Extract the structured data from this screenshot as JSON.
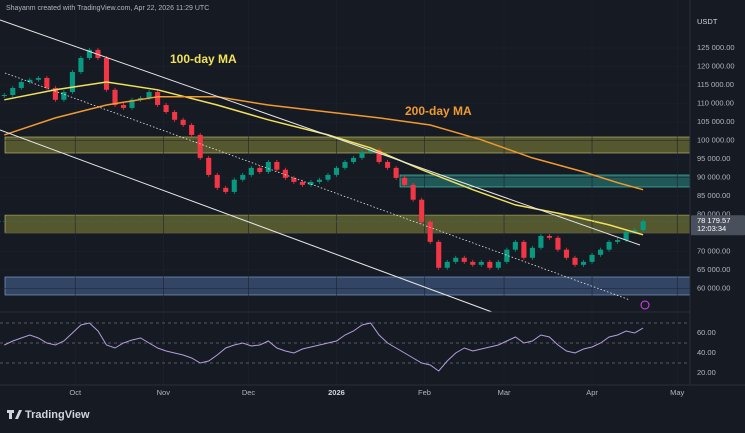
{
  "header": {
    "attribution": "Shayanm created with TradingView.com, Apr 22, 2026 11:29 UTC",
    "currency": "USDT",
    "brand": "TradingView"
  },
  "chart_data": {
    "type": "candlestick",
    "up_color": "#089981",
    "down_color": "#f23645",
    "close": [
      112300,
      114200,
      115800,
      116400,
      116900,
      114200,
      111000,
      113100,
      118500,
      122300,
      124500,
      122300,
      113700,
      109600,
      108800,
      111000,
      111500,
      113100,
      109600,
      107700,
      105600,
      104200,
      101500,
      95300,
      90700,
      87200,
      86100,
      89400,
      90700,
      92600,
      91500,
      94200,
      92100,
      89900,
      88800,
      88000,
      88800,
      89400,
      90700,
      92600,
      94200,
      95300,
      96900,
      97500,
      94200,
      92600,
      89900,
      88000,
      84000,
      78000,
      72600,
      65600,
      67200,
      68300,
      67200,
      66400,
      67200,
      65600,
      67200,
      70500,
      72600,
      68300,
      71000,
      74200,
      73700,
      70500,
      68300,
      66400,
      67200,
      69100,
      70500,
      72600,
      73100,
      75300,
      75800,
      78179.57
    ],
    "xlim": [
      -0.5,
      80.5
    ],
    "ylim": [
      54190,
      137970
    ],
    "xticks": [
      {
        "value": 8.33,
        "label": "Oct"
      },
      {
        "value": 18.67,
        "label": "Nov"
      },
      {
        "value": 28.67,
        "label": "Dec"
      },
      {
        "value": 39,
        "label": "2026"
      },
      {
        "value": 49.33,
        "label": "Feb"
      },
      {
        "value": 58.67,
        "label": "Mar"
      },
      {
        "value": 69,
        "label": "Apr"
      },
      {
        "value": 79,
        "label": "May"
      }
    ],
    "yticks": [
      {
        "value": 125000,
        "label": "125 000.00"
      },
      {
        "value": 120000,
        "label": "120 000.00"
      },
      {
        "value": 115000,
        "label": "115 000.00"
      },
      {
        "value": 110000,
        "label": "110 000.00"
      },
      {
        "value": 105000,
        "label": "105 000.00"
      },
      {
        "value": 100000,
        "label": "100 000.00"
      },
      {
        "value": 95000,
        "label": "95 000.00"
      },
      {
        "value": 90000,
        "label": "90 000.00"
      },
      {
        "value": 85000,
        "label": "85 000.00"
      },
      {
        "value": 80000,
        "label": "80 000.00"
      },
      {
        "value": 75000,
        "label": "75 000.00"
      },
      {
        "value": 70000,
        "label": "70 000.00"
      },
      {
        "value": 65000,
        "label": "65 000.00"
      },
      {
        "value": 60000,
        "label": "60 000.00"
      }
    ],
    "last_price": {
      "value": 78179.57,
      "label": "78 179.57"
    },
    "countdown": "12:03:34",
    "series": [
      {
        "name": "100-day MA",
        "color": "#f2e15b",
        "x": [
          0,
          6,
          12,
          18,
          25,
          31,
          38,
          43,
          49,
          55,
          60,
          66,
          71,
          75
        ],
        "values": [
          111000,
          113700,
          115800,
          113700,
          109600,
          105600,
          101500,
          98000,
          92100,
          86700,
          82600,
          79900,
          77200,
          74500
        ]
      },
      {
        "name": "200-day MA",
        "color": "#f09a30",
        "x": [
          0,
          6,
          12,
          18,
          25,
          31,
          38,
          44,
          50,
          56,
          62,
          68,
          72,
          75
        ],
        "values": [
          101500,
          106100,
          109600,
          111800,
          111800,
          109600,
          107700,
          106100,
          104200,
          100200,
          95300,
          91500,
          88600,
          86700
        ]
      }
    ],
    "rsi": {
      "color": "#b39ddb",
      "values": [
        48,
        52,
        55,
        58,
        55,
        50,
        48,
        52,
        60,
        68,
        70,
        62,
        48,
        45,
        50,
        53,
        55,
        50,
        45,
        42,
        40,
        38,
        35,
        30,
        32,
        38,
        45,
        48,
        50,
        47,
        48,
        52,
        45,
        42,
        40,
        44,
        46,
        48,
        50,
        52,
        58,
        62,
        68,
        70,
        58,
        50,
        45,
        40,
        35,
        30,
        28,
        22,
        32,
        40,
        45,
        42,
        44,
        46,
        48,
        52,
        56,
        50,
        52,
        58,
        56,
        48,
        42,
        40,
        44,
        46,
        50,
        56,
        58,
        62,
        60,
        65
      ],
      "ylim": [
        11,
        75
      ],
      "yticks": [
        {
          "value": 60,
          "label": "60.00"
        },
        {
          "value": 40,
          "label": "40.00"
        },
        {
          "value": 20,
          "label": "20.00"
        }
      ]
    }
  }
}
